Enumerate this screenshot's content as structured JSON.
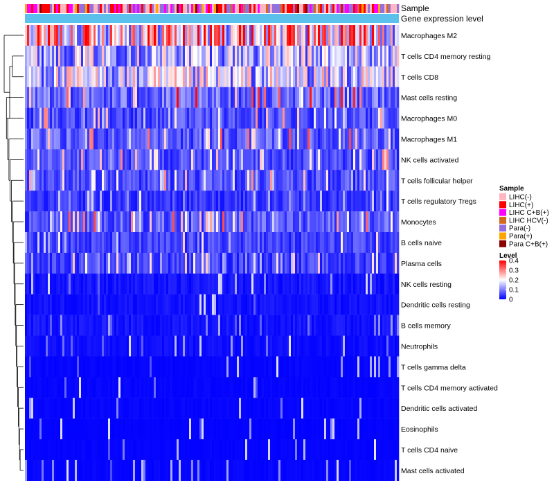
{
  "chart_data": {
    "type": "heatmap",
    "title": "",
    "annotation_tracks": [
      "Sample",
      "Gene expression level"
    ],
    "rows": [
      {
        "name": "Macrophages M2",
        "mean": 0.24
      },
      {
        "name": "T cells CD4 memory resting",
        "mean": 0.14
      },
      {
        "name": "T cells CD8",
        "mean": 0.15
      },
      {
        "name": "Mast cells resting",
        "mean": 0.08
      },
      {
        "name": "Macrophages M0",
        "mean": 0.06
      },
      {
        "name": "Macrophages M1",
        "mean": 0.07
      },
      {
        "name": "NK cells activated",
        "mean": 0.06
      },
      {
        "name": "T cells follicular helper",
        "mean": 0.06
      },
      {
        "name": "T cells regulatory  Tregs",
        "mean": 0.04
      },
      {
        "name": "Monocytes",
        "mean": 0.07
      },
      {
        "name": "B cells naive",
        "mean": 0.05
      },
      {
        "name": "Plasma cells",
        "mean": 0.05
      },
      {
        "name": "NK cells resting",
        "mean": 0.03
      },
      {
        "name": "Dendritic cells resting",
        "mean": 0.025
      },
      {
        "name": "B cells memory",
        "mean": 0.03
      },
      {
        "name": "Neutrophils",
        "mean": 0.02
      },
      {
        "name": "T cells gamma delta",
        "mean": 0.008
      },
      {
        "name": "T cells CD4 memory activated",
        "mean": 0.008
      },
      {
        "name": "Dendritic cells activated",
        "mean": 0.008
      },
      {
        "name": "Eosinophils",
        "mean": 0.004
      },
      {
        "name": "T cells CD4 naive",
        "mean": 0.006
      },
      {
        "name": "Mast cells activated",
        "mean": 0.008
      }
    ],
    "sample_legend": {
      "title": "Sample",
      "items": [
        {
          "label": "LIHC(-)",
          "color": "#ffb6c1"
        },
        {
          "label": "LIHC(+)",
          "color": "#ff0000"
        },
        {
          "label": "LIHC C+B(+)",
          "color": "#ff00ff"
        },
        {
          "label": "LIHC HCV(-)",
          "color": "#d2691e"
        },
        {
          "label": "Para(-)",
          "color": "#9370db"
        },
        {
          "label": "Para(+)",
          "color": "#ffa500"
        },
        {
          "label": "Para C+B(+)",
          "color": "#8b0000"
        }
      ]
    },
    "level_legend": {
      "title": "Level",
      "ticks": [
        {
          "label": "0.4",
          "value": 0.4
        },
        {
          "label": "0.3",
          "value": 0.3
        },
        {
          "label": "0.2",
          "value": 0.2
        },
        {
          "label": "0.1",
          "value": 0.1
        },
        {
          "label": "0",
          "value": 0
        }
      ],
      "range": [
        0,
        0.4
      ],
      "colors": [
        "#0000ff",
        "#ffffff",
        "#ff0000"
      ]
    },
    "gene_expression_track_color": "#5bc0eb"
  }
}
